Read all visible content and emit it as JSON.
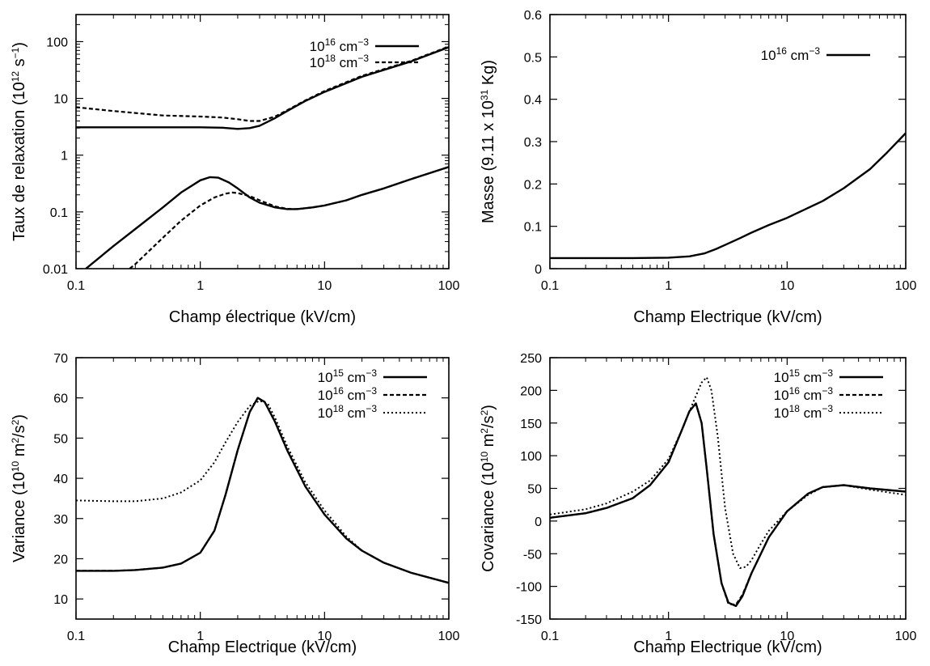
{
  "chart_data": [
    {
      "type": "line",
      "xlabel": "Champ électrique (kV/cm)",
      "ylabel": {
        "pre": "Taux de relaxation (10",
        "exp": "12",
        "mid": " s",
        "exp2": "−1",
        "post": ")"
      },
      "xscale": "log",
      "yscale": "log",
      "xlim": [
        0.1,
        100
      ],
      "ylim": [
        0.01,
        300
      ],
      "xticks": [
        {
          "v": 0.1,
          "label": "0.1"
        },
        {
          "v": 1,
          "label": "1"
        },
        {
          "v": 10,
          "label": "10"
        },
        {
          "v": 100,
          "label": "100"
        }
      ],
      "yticks": [
        {
          "v": 0.01,
          "label": "0.01"
        },
        {
          "v": 0.1,
          "label": "0.1"
        },
        {
          "v": 1,
          "label": "1"
        },
        {
          "v": 10,
          "label": "10"
        },
        {
          "v": 100,
          "label": "100"
        }
      ],
      "legend_position": "top-right",
      "series": [
        {
          "name": {
            "base": "10",
            "exp": "16",
            "unit": " cm",
            "uexp": "−3"
          },
          "style": "solid",
          "legend": true,
          "x": [
            0.1,
            0.2,
            0.5,
            1,
            1.5,
            2,
            2.5,
            3,
            4,
            5,
            7,
            10,
            20,
            50,
            100
          ],
          "y": [
            3.1,
            3.1,
            3.1,
            3.1,
            3.05,
            2.9,
            3.0,
            3.3,
            4.5,
            6.0,
            9.0,
            13,
            24,
            45,
            80
          ]
        },
        {
          "name": {
            "base": "10",
            "exp": "18",
            "unit": " cm",
            "uexp": "−3"
          },
          "style": "dashed",
          "legend": true,
          "x": [
            0.1,
            0.2,
            0.5,
            1,
            1.5,
            2,
            2.5,
            3,
            4,
            5,
            7,
            10,
            20,
            50,
            100
          ],
          "y": [
            7.0,
            6.0,
            5.0,
            4.8,
            4.6,
            4.3,
            4.0,
            4.0,
            4.8,
            6.2,
            9.2,
            13.5,
            25,
            46,
            82
          ]
        },
        {
          "style": "solid",
          "legend": false,
          "x": [
            0.12,
            0.2,
            0.3,
            0.5,
            0.7,
            1,
            1.2,
            1.4,
            1.7,
            2,
            2.5,
            3,
            4,
            5,
            6,
            8,
            10,
            15,
            20,
            30,
            50,
            100
          ],
          "y": [
            0.01,
            0.025,
            0.05,
            0.12,
            0.22,
            0.36,
            0.41,
            0.4,
            0.33,
            0.26,
            0.18,
            0.145,
            0.12,
            0.112,
            0.112,
            0.12,
            0.13,
            0.16,
            0.2,
            0.26,
            0.38,
            0.62
          ]
        },
        {
          "style": "dashed",
          "legend": false,
          "x": [
            0.27,
            0.3,
            0.5,
            0.7,
            1,
            1.3,
            1.6,
            1.8,
            2,
            2.5,
            3,
            4,
            5,
            6,
            8,
            10,
            15,
            20,
            30,
            50,
            100
          ],
          "y": [
            0.01,
            0.012,
            0.035,
            0.07,
            0.13,
            0.18,
            0.21,
            0.22,
            0.215,
            0.19,
            0.16,
            0.125,
            0.113,
            0.112,
            0.12,
            0.13,
            0.16,
            0.2,
            0.26,
            0.38,
            0.62
          ]
        }
      ]
    },
    {
      "type": "line",
      "xlabel": "Champ Electrique (kV/cm)",
      "ylabel": {
        "pre": "Masse (9.11 x 10",
        "exp": "31",
        "post": " Kg)"
      },
      "xscale": "log",
      "yscale": "linear",
      "xlim": [
        0.1,
        100
      ],
      "ylim": [
        0,
        0.6
      ],
      "xticks": [
        {
          "v": 0.1,
          "label": "0.1"
        },
        {
          "v": 1,
          "label": "1"
        },
        {
          "v": 10,
          "label": "10"
        },
        {
          "v": 100,
          "label": "100"
        }
      ],
      "yticks": [
        {
          "v": 0,
          "label": "0"
        },
        {
          "v": 0.1,
          "label": "0.1"
        },
        {
          "v": 0.2,
          "label": "0.2"
        },
        {
          "v": 0.3,
          "label": "0.3"
        },
        {
          "v": 0.4,
          "label": "0.4"
        },
        {
          "v": 0.5,
          "label": "0.5"
        },
        {
          "v": 0.6,
          "label": "0.6"
        }
      ],
      "legend_position": "top-right",
      "series": [
        {
          "name": {
            "base": "10",
            "exp": "16",
            "unit": " cm",
            "uexp": "−3"
          },
          "style": "solid",
          "legend": true,
          "x": [
            0.1,
            0.3,
            0.5,
            1,
            1.5,
            2,
            2.5,
            3,
            4,
            5,
            7,
            10,
            20,
            30,
            50,
            70,
            100
          ],
          "y": [
            0.025,
            0.025,
            0.025,
            0.026,
            0.029,
            0.036,
            0.046,
            0.056,
            0.072,
            0.085,
            0.103,
            0.12,
            0.16,
            0.19,
            0.235,
            0.275,
            0.32
          ]
        }
      ]
    },
    {
      "type": "line",
      "xlabel": "Champ Electrique (kV/cm)",
      "ylabel": {
        "pre": "Variance (10",
        "exp": "10",
        "mid": " m",
        "exp2": "2",
        "mid2": "/s",
        "exp3": "2",
        "post": ")"
      },
      "xscale": "log",
      "yscale": "linear",
      "xlim": [
        0.1,
        100
      ],
      "ylim": [
        5,
        70
      ],
      "xticks": [
        {
          "v": 0.1,
          "label": "0.1"
        },
        {
          "v": 1,
          "label": "1"
        },
        {
          "v": 10,
          "label": "10"
        },
        {
          "v": 100,
          "label": "100"
        }
      ],
      "yticks": [
        {
          "v": 10,
          "label": "10"
        },
        {
          "v": 20,
          "label": "20"
        },
        {
          "v": 30,
          "label": "30"
        },
        {
          "v": 40,
          "label": "40"
        },
        {
          "v": 50,
          "label": "50"
        },
        {
          "v": 60,
          "label": "60"
        },
        {
          "v": 70,
          "label": "70"
        }
      ],
      "legend_position": "top-right",
      "series": [
        {
          "name": {
            "base": "10",
            "exp": "15",
            "unit": " cm",
            "uexp": "−3"
          },
          "style": "solid",
          "legend": true,
          "x": [
            0.1,
            0.2,
            0.3,
            0.5,
            0.7,
            1,
            1.3,
            1.6,
            2,
            2.5,
            2.9,
            3.3,
            4,
            5,
            7,
            10,
            15,
            20,
            30,
            50,
            100
          ],
          "y": [
            17,
            17,
            17.2,
            17.8,
            18.8,
            21.5,
            27,
            36,
            47,
            56.5,
            60,
            59,
            54,
            47,
            38,
            31,
            25,
            22,
            19,
            16.5,
            14
          ]
        },
        {
          "name": {
            "base": "10",
            "exp": "16",
            "unit": " cm",
            "uexp": "−3"
          },
          "style": "dashed",
          "legend": true,
          "x": [
            0.1,
            0.2,
            0.3,
            0.5,
            0.7,
            1,
            1.3,
            1.6,
            2,
            2.5,
            2.9,
            3.3,
            4,
            5,
            7,
            10,
            15,
            20,
            30,
            50,
            100
          ],
          "y": [
            17,
            17,
            17.2,
            17.8,
            18.8,
            21.5,
            27,
            36,
            47,
            56.5,
            60,
            59,
            54,
            47,
            38,
            31,
            25,
            22,
            19,
            16.5,
            14
          ]
        },
        {
          "name": {
            "base": "10",
            "exp": "18",
            "unit": " cm",
            "uexp": "−3"
          },
          "style": "dotted",
          "legend": true,
          "x": [
            0.1,
            0.2,
            0.3,
            0.5,
            0.7,
            1,
            1.3,
            1.6,
            2,
            2.5,
            3,
            3.5,
            4,
            5,
            7,
            10,
            15,
            20,
            30,
            50,
            100
          ],
          "y": [
            34.5,
            34.3,
            34.3,
            35,
            36.5,
            39.5,
            44,
            49,
            54,
            58,
            59.3,
            58.5,
            55,
            48,
            39,
            32,
            25.5,
            22,
            19,
            16.5,
            14
          ]
        }
      ]
    },
    {
      "type": "line",
      "xlabel": "Champ Electrique (kV/cm)",
      "ylabel": {
        "pre": "Covariance (10",
        "exp": "10",
        "mid": " m",
        "exp2": "2",
        "mid2": "/s",
        "exp3": "2",
        "post": ")"
      },
      "xscale": "log",
      "yscale": "linear",
      "xlim": [
        0.1,
        100
      ],
      "ylim": [
        -150,
        250
      ],
      "xticks": [
        {
          "v": 0.1,
          "label": "0.1"
        },
        {
          "v": 1,
          "label": "1"
        },
        {
          "v": 10,
          "label": "10"
        },
        {
          "v": 100,
          "label": "100"
        }
      ],
      "yticks": [
        {
          "v": -150,
          "label": "-150"
        },
        {
          "v": -100,
          "label": "-100"
        },
        {
          "v": -50,
          "label": "-50"
        },
        {
          "v": 0,
          "label": "0"
        },
        {
          "v": 50,
          "label": "50"
        },
        {
          "v": 100,
          "label": "100"
        },
        {
          "v": 150,
          "label": "150"
        },
        {
          "v": 200,
          "label": "200"
        },
        {
          "v": 250,
          "label": "250"
        }
      ],
      "legend_position": "top-right",
      "series": [
        {
          "name": {
            "base": "10",
            "exp": "15",
            "unit": " cm",
            "uexp": "−3"
          },
          "style": "solid",
          "legend": true,
          "x": [
            0.1,
            0.2,
            0.3,
            0.5,
            0.7,
            1,
            1.3,
            1.5,
            1.7,
            1.9,
            2.1,
            2.4,
            2.8,
            3.2,
            3.7,
            4.2,
            5,
            7,
            10,
            15,
            20,
            30,
            50,
            100
          ],
          "y": [
            5,
            12,
            20,
            35,
            55,
            90,
            140,
            168,
            180,
            150,
            80,
            -20,
            -95,
            -125,
            -130,
            -115,
            -80,
            -25,
            15,
            42,
            52,
            55,
            50,
            45
          ]
        },
        {
          "name": {
            "base": "10",
            "exp": "16",
            "unit": " cm",
            "uexp": "−3"
          },
          "style": "dashed",
          "legend": true,
          "x": [
            0.1,
            0.2,
            0.3,
            0.5,
            0.7,
            1,
            1.3,
            1.5,
            1.7,
            1.9,
            2.1,
            2.4,
            2.8,
            3.2,
            3.7,
            4.2,
            5,
            7,
            10,
            15,
            20,
            30,
            50,
            100
          ],
          "y": [
            5,
            12,
            20,
            35,
            55,
            90,
            140,
            168,
            180,
            150,
            80,
            -20,
            -95,
            -127,
            -128,
            -113,
            -80,
            -25,
            15,
            42,
            52,
            55,
            50,
            45
          ]
        },
        {
          "name": {
            "base": "10",
            "exp": "18",
            "unit": " cm",
            "uexp": "−3"
          },
          "style": "dotted",
          "legend": true,
          "x": [
            0.1,
            0.2,
            0.3,
            0.5,
            0.7,
            1,
            1.3,
            1.6,
            1.9,
            2.1,
            2.3,
            2.6,
            3,
            3.5,
            4,
            4.5,
            5,
            6,
            7,
            10,
            15,
            20,
            30,
            50,
            100
          ],
          "y": [
            10,
            18,
            27,
            45,
            62,
            95,
            140,
            180,
            212,
            220,
            200,
            130,
            20,
            -50,
            -72,
            -70,
            -60,
            -35,
            -15,
            15,
            40,
            52,
            55,
            48,
            40
          ]
        }
      ]
    }
  ]
}
